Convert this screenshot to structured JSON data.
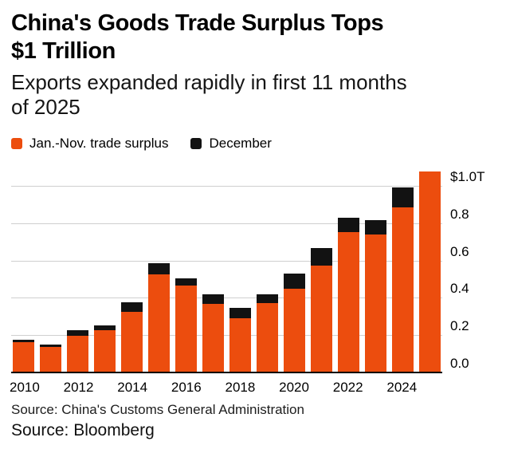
{
  "header": {
    "title_lines": [
      "China's Goods Trade Surplus Tops",
      "$1 Trillion"
    ],
    "subtitle_lines": [
      "Exports expanded rapidly in first 11 months",
      "of 2025"
    ]
  },
  "chart_data": {
    "type": "bar",
    "stacked": true,
    "title": "China's Goods Trade Surplus Tops $1 Trillion",
    "subtitle": "Exports expanded rapidly in first 11 months of 2025",
    "unit": "trillion USD",
    "grid": "horizontal",
    "legend_position": "top",
    "categories": [
      "2010",
      "2011",
      "2012",
      "2013",
      "2014",
      "2015",
      "2016",
      "2017",
      "2018",
      "2019",
      "2020",
      "2021",
      "2022",
      "2023",
      "2024",
      "2025"
    ],
    "series": [
      {
        "name": "Jan.-Nov. trade surplus",
        "color": "#EC4D0E",
        "values": [
          0.165,
          0.14,
          0.2,
          0.23,
          0.33,
          0.53,
          0.47,
          0.37,
          0.295,
          0.375,
          0.455,
          0.575,
          0.755,
          0.745,
          0.89,
          1.08
        ]
      },
      {
        "name": "December",
        "color": "#121212",
        "values": [
          0.015,
          0.015,
          0.03,
          0.026,
          0.05,
          0.06,
          0.04,
          0.054,
          0.057,
          0.047,
          0.078,
          0.094,
          0.078,
          0.075,
          0.104,
          0
        ]
      }
    ],
    "ylim": [
      0,
      1.12
    ],
    "y_ticks": [
      {
        "value": 1.0,
        "label": "$1.0T"
      },
      {
        "value": 0.8,
        "label": "0.8"
      },
      {
        "value": 0.6,
        "label": "0.6"
      },
      {
        "value": 0.4,
        "label": "0.4"
      },
      {
        "value": 0.2,
        "label": "0.2"
      },
      {
        "value": 0.0,
        "label": "0.0"
      }
    ],
    "x_ticks": [
      "2010",
      "2012",
      "2014",
      "2016",
      "2018",
      "2020",
      "2022",
      "2024"
    ]
  },
  "footer": {
    "source1": "Source: China's Customs General Administration",
    "source2": "Source: Bloomberg"
  }
}
